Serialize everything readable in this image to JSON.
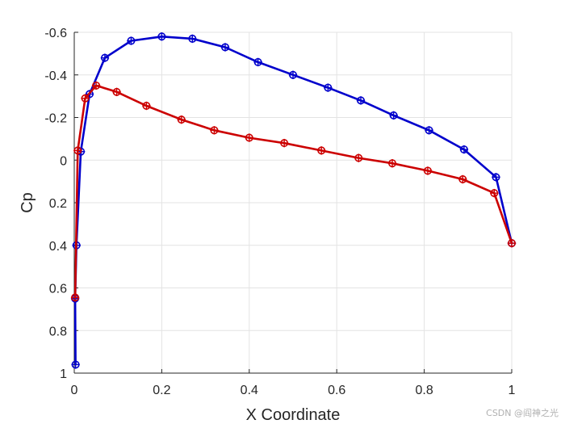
{
  "chart_data": {
    "type": "line",
    "title": "",
    "xlabel": "X Coordinate",
    "ylabel": "Cp",
    "xlim": [
      0,
      1
    ],
    "ylim": [
      -0.6,
      1
    ],
    "y_reversed": true,
    "grid": true,
    "legend": "none",
    "x_ticks": [
      "0",
      "0.2",
      "0.4",
      "0.6",
      "0.8",
      "1"
    ],
    "x_tick_values": [
      0,
      0.2,
      0.4,
      0.6,
      0.8,
      1
    ],
    "y_ticks": [
      "-0.6",
      "-0.4",
      "-0.2",
      "0",
      "0.2",
      "0.4",
      "0.6",
      "0.8",
      "1"
    ],
    "y_tick_values": [
      -0.6,
      -0.4,
      -0.2,
      0,
      0.2,
      0.4,
      0.6,
      0.8,
      1
    ],
    "series": [
      {
        "color": "#0000cc",
        "marker": "circle-plus",
        "x": [
          1.0,
          0.964,
          0.891,
          0.811,
          0.73,
          0.655,
          0.58,
          0.5,
          0.42,
          0.345,
          0.27,
          0.2,
          0.13,
          0.07,
          0.035,
          0.015,
          0.005,
          0.002,
          0.003
        ],
        "y": [
          0.39,
          0.08,
          -0.05,
          -0.14,
          -0.21,
          -0.28,
          -0.34,
          -0.4,
          -0.46,
          -0.53,
          -0.57,
          -0.58,
          -0.56,
          -0.48,
          -0.31,
          -0.04,
          0.4,
          0.65,
          0.96
        ]
      },
      {
        "color": "#cc0000",
        "marker": "circle-plus",
        "x": [
          1.0,
          0.96,
          0.888,
          0.808,
          0.727,
          0.65,
          0.565,
          0.48,
          0.4,
          0.32,
          0.245,
          0.165,
          0.097,
          0.05,
          0.025,
          0.008,
          0.002
        ],
        "y": [
          0.39,
          0.155,
          0.09,
          0.05,
          0.015,
          -0.01,
          -0.045,
          -0.08,
          -0.105,
          -0.14,
          -0.19,
          -0.255,
          -0.32,
          -0.35,
          -0.29,
          -0.045,
          0.645
        ]
      }
    ]
  },
  "watermark": "CSDN @阎神之光"
}
